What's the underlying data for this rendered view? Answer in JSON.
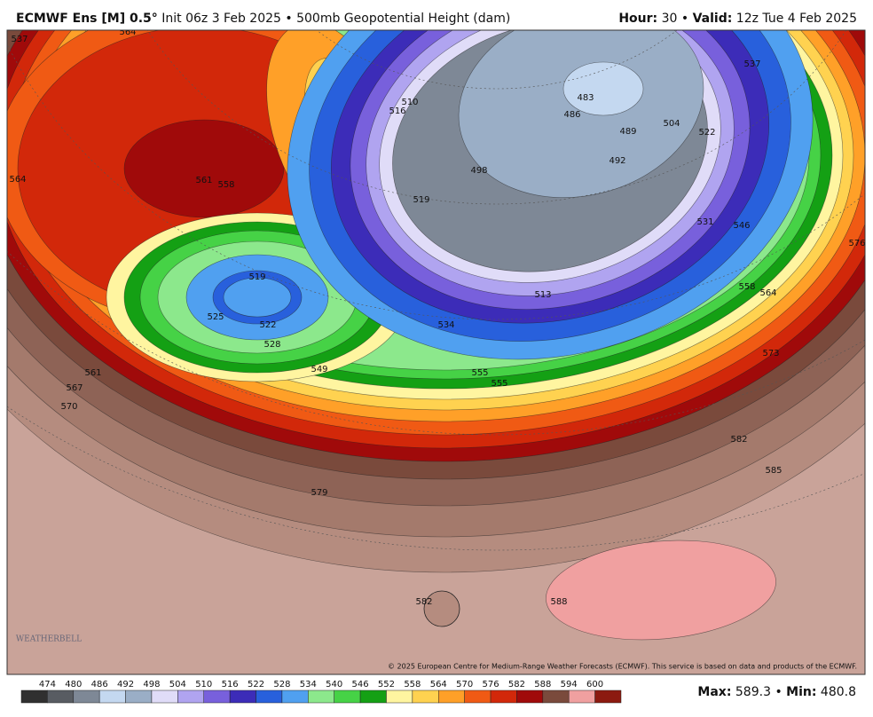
{
  "header": {
    "model": "ECMWF Ens [M] 0.5°",
    "init": "Init 06z 3 Feb 2025",
    "separator": "•",
    "field": "500mb Geopotential Height (dam)",
    "hour_label": "Hour:",
    "hour": "30",
    "valid_label": "Valid:",
    "valid": "12z Tue 4 Feb 2025"
  },
  "map": {
    "contour_labels": [
      "537",
      "564",
      "564",
      "561",
      "558",
      "519",
      "522",
      "525",
      "528",
      "549",
      "555",
      "555",
      "561",
      "567",
      "570",
      "573",
      "576",
      "579",
      "582",
      "585",
      "588",
      "582",
      "531",
      "534",
      "546",
      "558",
      "564",
      "537",
      "522",
      "504",
      "483",
      "486",
      "489",
      "492",
      "498",
      "510",
      "513",
      "516",
      "519"
    ],
    "watermark": "WEATHERBELL",
    "copyright": "© 2025 European Centre for Medium-Range Weather Forecasts (ECMWF). This service is based on data and products of the ECMWF."
  },
  "colorbar": {
    "ticks": [
      474,
      480,
      486,
      492,
      498,
      504,
      510,
      516,
      522,
      528,
      534,
      540,
      546,
      552,
      558,
      564,
      570,
      576,
      582,
      588,
      594,
      600
    ],
    "colors": [
      "#303030",
      "#585c62",
      "#7e8896",
      "#c4d8f0",
      "#9aaec6",
      "#e0dcf8",
      "#b0a4f0",
      "#7860dc",
      "#3c2cb8",
      "#2860dc",
      "#50a0f0",
      "#8ce88c",
      "#46d246",
      "#14a014",
      "#fff5a0",
      "#ffd250",
      "#ffa028",
      "#f05a14",
      "#d2280a",
      "#a00a0a",
      "#7a4a3c",
      "#f0a0a0",
      "#8c1a10"
    ]
  },
  "footer": {
    "max_label": "Max:",
    "max": 589.3,
    "separator": "•",
    "min_label": "Min:",
    "min": 480.8
  }
}
